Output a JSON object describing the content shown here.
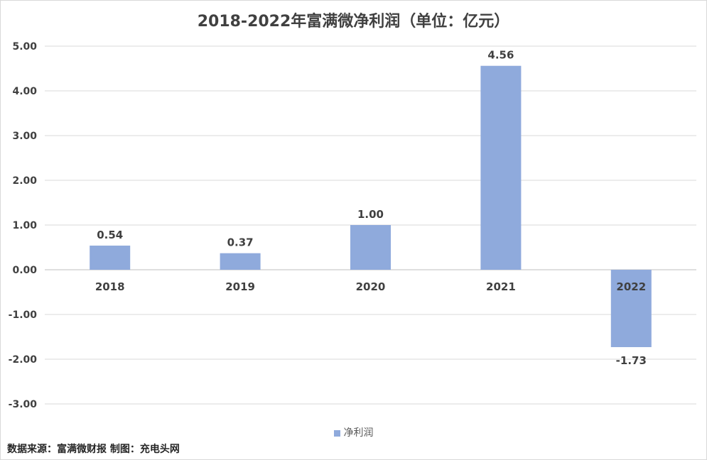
{
  "chart_data": {
    "type": "bar",
    "title": "2018-2022年富满微净利润（单位：亿元）",
    "categories": [
      "2018",
      "2019",
      "2020",
      "2021",
      "2022"
    ],
    "series": [
      {
        "name": "净利润",
        "values": [
          0.54,
          0.37,
          1.0,
          4.56,
          -1.73
        ]
      }
    ],
    "data_labels": [
      "0.54",
      "0.37",
      "1.00",
      "4.56",
      "-1.73"
    ],
    "y_ticks": [
      "5.00",
      "4.00",
      "3.00",
      "2.00",
      "1.00",
      "0.00",
      "-1.00",
      "-2.00",
      "-3.00"
    ],
    "ylim": [
      -3,
      5
    ],
    "grid": true,
    "legend_position": "bottom",
    "bar_color": "#8faadc"
  },
  "footer": {
    "source_note": "数据来源：富满微财报  制图：充电头网"
  }
}
